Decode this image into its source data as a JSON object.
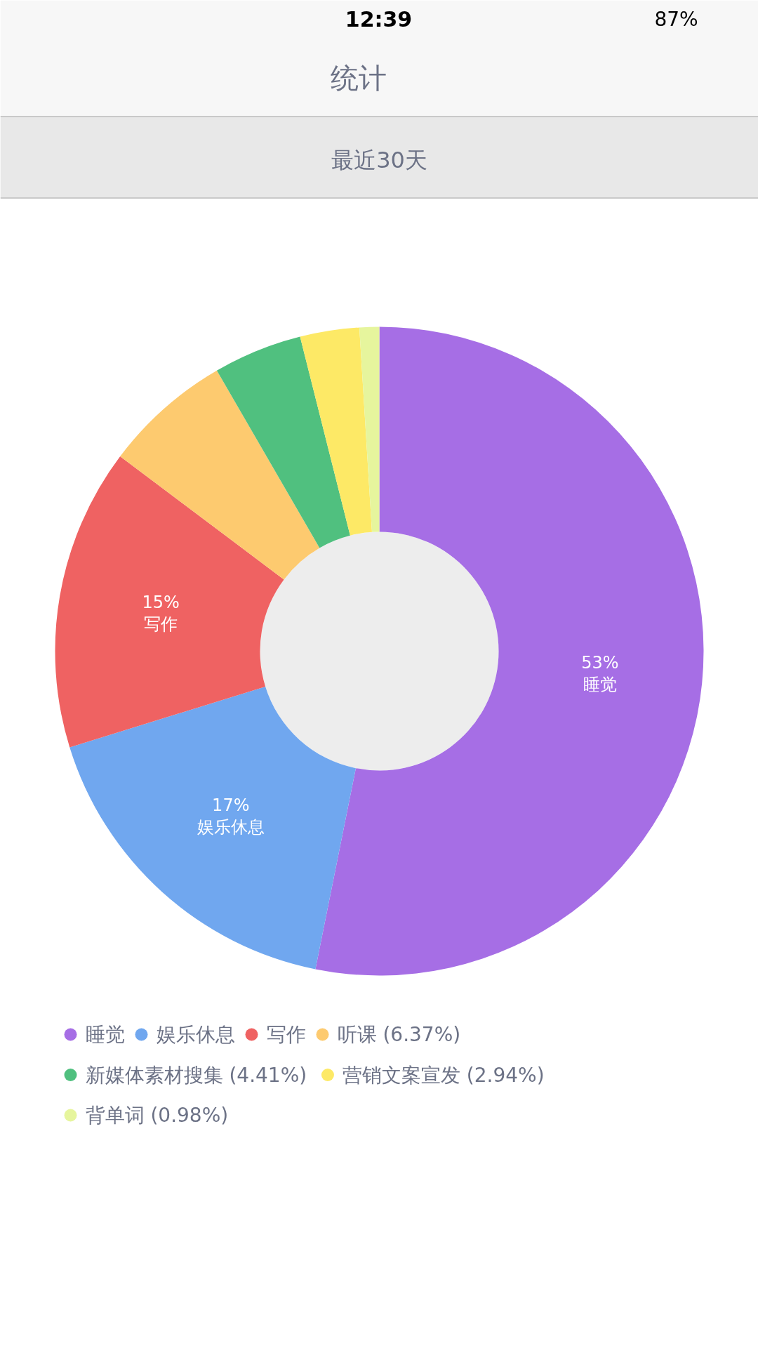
{
  "chart_data": {
    "type": "donut",
    "title": "统计",
    "subtitle": "最近30天",
    "annotations": [
      "12:39",
      "87%"
    ],
    "categories": [
      "睡觉",
      "娱乐休息",
      "写作",
      "听课 (6.37%)",
      "新媒体素材搜集 (4.41%)",
      "营销文案宣发 (2.94%)",
      "背单词 (0.98%)"
    ],
    "values": [
      53,
      17,
      15,
      6.37,
      4.41,
      2.94,
      0.98
    ],
    "value_labels": [
      "53%",
      "17%",
      "15%",
      null,
      null,
      null,
      null
    ],
    "colors": [
      "#a66ee5",
      "#70a7ef",
      "#ef6262",
      "#fdca6f",
      "#50c07f",
      "#fde966",
      "#e6f59d"
    ],
    "legend": "bottom"
  }
}
